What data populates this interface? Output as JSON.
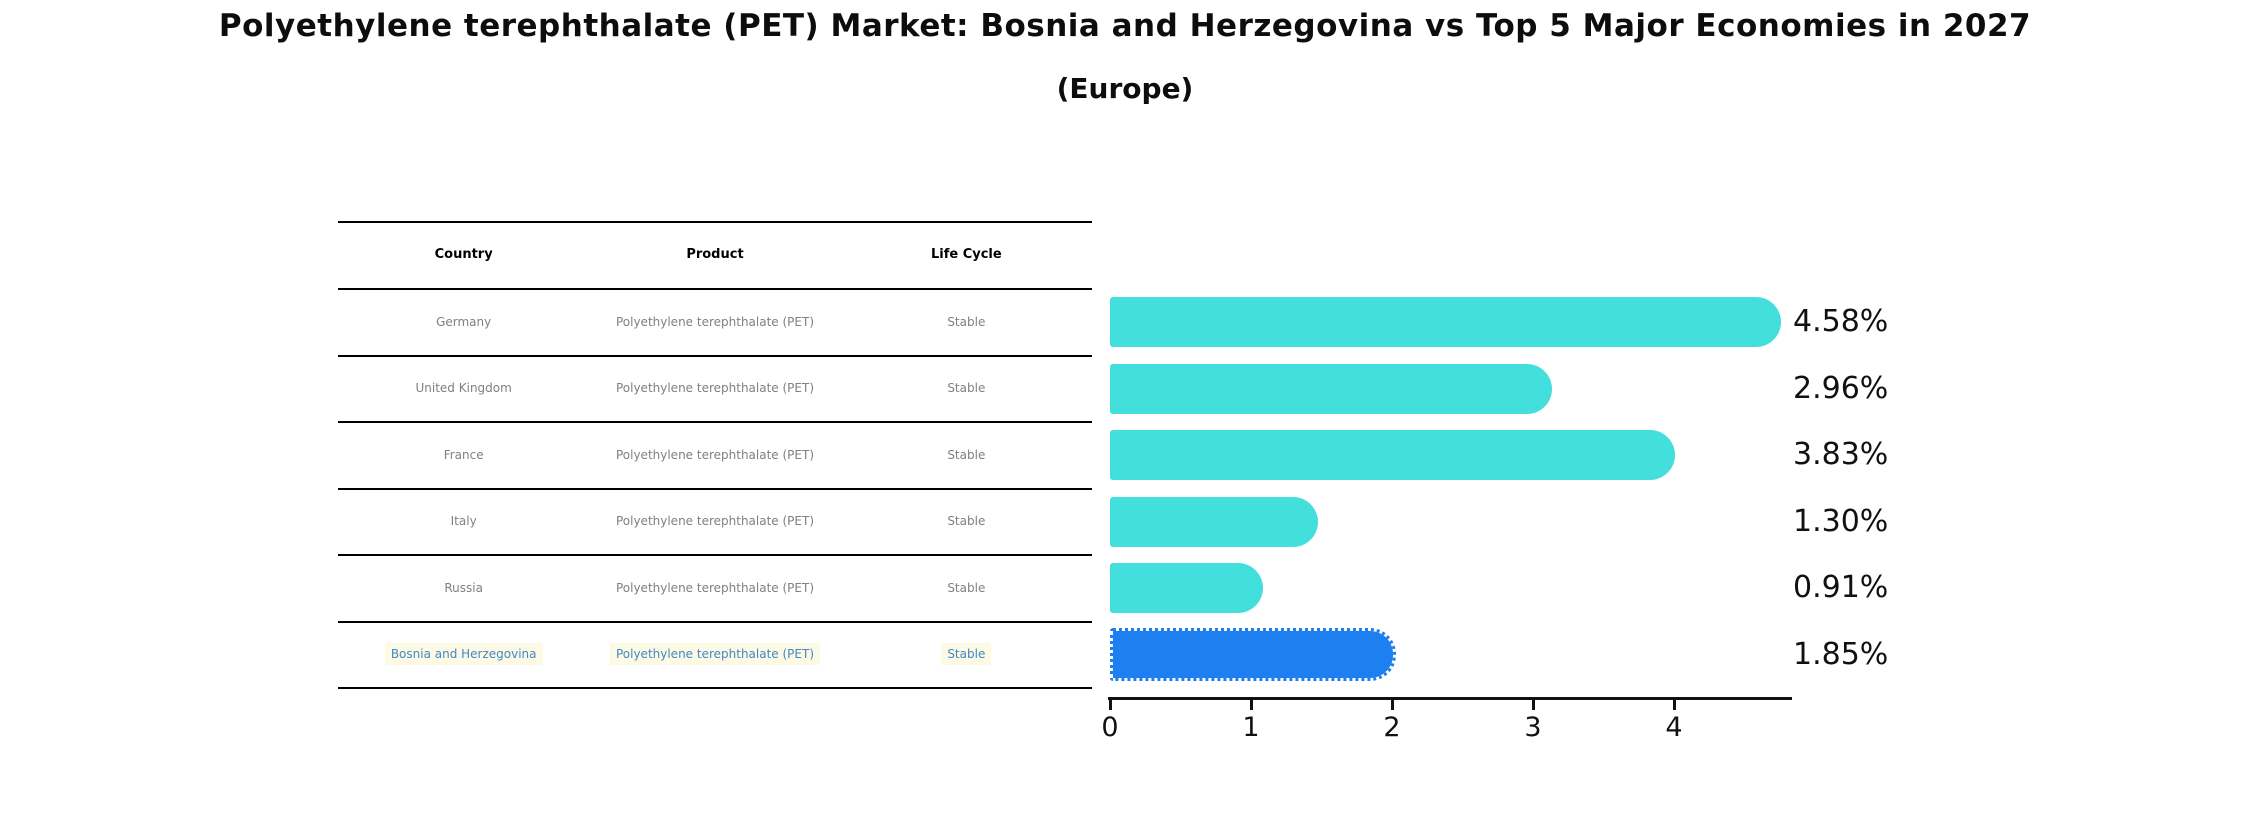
{
  "title": "Polyethylene terephthalate (PET) Market: Bosnia and Herzegovina vs Top 5 Major Economies in 2027",
  "subtitle": "(Europe)",
  "table": {
    "headers": [
      "Country",
      "Product",
      "Life Cycle"
    ],
    "rows": [
      {
        "country": "Germany",
        "product": "Polyethylene terephthalate (PET)",
        "life_cycle": "Stable",
        "highlight": false
      },
      {
        "country": "United Kingdom",
        "product": "Polyethylene terephthalate (PET)",
        "life_cycle": "Stable",
        "highlight": false
      },
      {
        "country": "France",
        "product": "Polyethylene terephthalate (PET)",
        "life_cycle": "Stable",
        "highlight": false
      },
      {
        "country": "Italy",
        "product": "Polyethylene terephthalate (PET)",
        "life_cycle": "Stable",
        "highlight": false
      },
      {
        "country": "Russia",
        "product": "Polyethylene terephthalate (PET)",
        "life_cycle": "Stable",
        "highlight": false
      },
      {
        "country": "Bosnia and Herzegovina",
        "product": "Polyethylene terephthalate (PET)",
        "life_cycle": "Stable",
        "highlight": true
      }
    ]
  },
  "chart_data": {
    "type": "bar",
    "orientation": "horizontal",
    "categories": [
      "Germany",
      "United Kingdom",
      "France",
      "Italy",
      "Russia",
      "Bosnia and Herzegovina"
    ],
    "values": [
      4.58,
      2.96,
      3.83,
      1.3,
      0.91,
      1.85
    ],
    "bar_labels": [
      "4.58%",
      "2.96%",
      "3.83%",
      "1.30%",
      "0.91%",
      "1.85%"
    ],
    "highlight_index": 5,
    "xticks": [
      "0",
      "1",
      "2",
      "3",
      "4"
    ],
    "xtick_values": [
      0,
      1,
      2,
      3,
      4
    ],
    "xlim": [
      0,
      4.85
    ],
    "grid": false,
    "legend": "none",
    "colors": {
      "bar": "#42dfdc",
      "highlight_bar": "#1e7ff0",
      "highlight_text": "#4189c6",
      "highlight_text_bg": "#fcf9e4",
      "table_text": "#808080",
      "axis": "#111111"
    }
  }
}
